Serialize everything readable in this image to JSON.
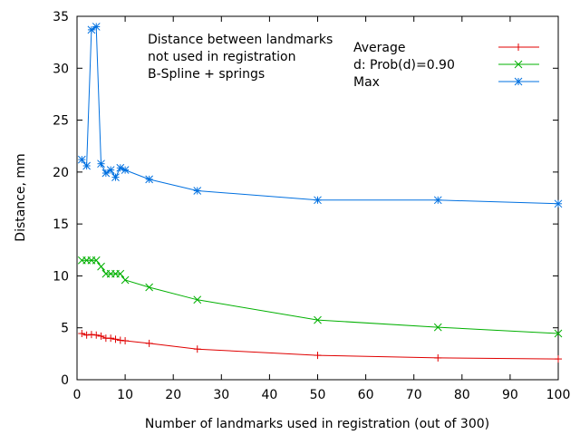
{
  "chart_data": {
    "type": "line",
    "title": "",
    "xlabel": "Number of landmarks used in registration (out of 300)",
    "ylabel": "Distance, mm",
    "xlim": [
      0,
      100
    ],
    "ylim": [
      0,
      35
    ],
    "xticks": [
      0,
      10,
      20,
      30,
      40,
      50,
      60,
      70,
      80,
      90,
      100
    ],
    "yticks": [
      0,
      5,
      10,
      15,
      20,
      25,
      30,
      35
    ],
    "grid": false,
    "legend_position": "top-right",
    "annotation": [
      "Distance between landmarks",
      "not used in registration",
      "B-Spline + springs"
    ],
    "x": [
      1,
      2,
      3,
      4,
      5,
      6,
      7,
      8,
      9,
      10,
      15,
      25,
      50,
      75,
      100
    ],
    "series": [
      {
        "name": "Average",
        "color": "#e00000",
        "marker": "plus",
        "values": [
          4.45,
          4.3,
          4.35,
          4.3,
          4.2,
          4.0,
          4.0,
          3.9,
          3.8,
          3.75,
          3.5,
          2.95,
          2.35,
          2.1,
          2.0
        ]
      },
      {
        "name": "d: Prob(d)=0.90",
        "color": "#00b000",
        "marker": "cross",
        "values": [
          11.5,
          11.5,
          11.5,
          11.5,
          10.9,
          10.2,
          10.2,
          10.2,
          10.2,
          9.6,
          8.9,
          7.7,
          5.75,
          5.05,
          4.45
        ]
      },
      {
        "name": "Max",
        "color": "#0070e0",
        "marker": "star",
        "values": [
          21.2,
          20.6,
          33.7,
          34.0,
          20.8,
          19.9,
          20.2,
          19.5,
          20.4,
          20.2,
          19.3,
          18.2,
          17.3,
          17.3,
          16.95
        ]
      }
    ]
  }
}
